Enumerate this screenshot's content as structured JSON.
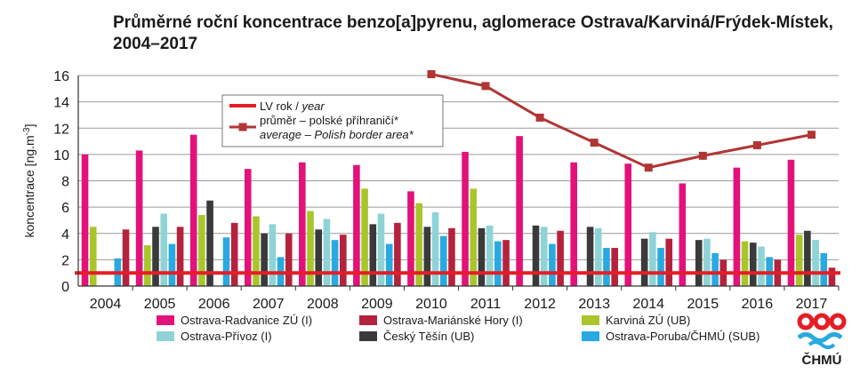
{
  "chart_data": {
    "type": "bar",
    "title": "Průměrné roční koncentrace benzo[a]pyrenu, aglomerace Ostrava/Karviná/Frýdek-Místek, 2004–2017",
    "ylabel": "koncentrace [ng.m-3]",
    "ylim": [
      0,
      16
    ],
    "yticks": [
      "0",
      "2",
      "4",
      "6",
      "8",
      "10",
      "12",
      "14",
      "16"
    ],
    "grid": true,
    "categories": [
      "2004",
      "2005",
      "2006",
      "2007",
      "2008",
      "2009",
      "2010",
      "2011",
      "2012",
      "2013",
      "2014",
      "2015",
      "2016",
      "2017"
    ],
    "series": [
      {
        "name": "Ostrava-Radvanice ZÚ (I)",
        "color": "#e2127a",
        "values": [
          10.0,
          10.3,
          11.5,
          8.9,
          9.4,
          9.2,
          7.2,
          10.2,
          11.4,
          9.4,
          9.3,
          7.8,
          9.0,
          9.6
        ]
      },
      {
        "name": "Karviná ZÚ (UB)",
        "color": "#a8c62b",
        "values": [
          4.5,
          3.1,
          5.4,
          5.3,
          5.7,
          7.4,
          6.3,
          7.4,
          null,
          null,
          null,
          null,
          3.4,
          3.9
        ]
      },
      {
        "name": "Český Těšín (UB)",
        "color": "#3a3a3a",
        "values": [
          null,
          4.5,
          6.5,
          4.0,
          4.3,
          4.7,
          4.5,
          4.4,
          4.6,
          4.5,
          3.6,
          3.5,
          3.3,
          4.2
        ]
      },
      {
        "name": "Ostrava-Přívoz (I)",
        "color": "#8fd3d6",
        "values": [
          null,
          5.5,
          null,
          4.7,
          5.1,
          5.5,
          5.6,
          4.6,
          4.5,
          4.4,
          4.1,
          3.6,
          3.0,
          3.5
        ]
      },
      {
        "name": "Ostrava-Poruba/ČHMÚ (SUB)",
        "color": "#29a9e1",
        "values": [
          2.1,
          3.2,
          3.7,
          2.2,
          3.5,
          3.2,
          3.8,
          3.4,
          3.2,
          2.9,
          2.9,
          2.5,
          2.2,
          2.5
        ]
      },
      {
        "name": "Ostrava-Mariánské Hory (I)",
        "color": "#b5223e",
        "values": [
          4.3,
          4.5,
          4.8,
          4.0,
          3.9,
          4.8,
          4.4,
          3.5,
          4.2,
          2.9,
          3.6,
          2.0,
          2.0,
          1.4
        ]
      }
    ],
    "lines": [
      {
        "name_cz": "LV rok",
        "name_en": "year",
        "color": "#e41e26",
        "type": "constant",
        "value": 1
      },
      {
        "name_cz": "průměr – polské příhraničí*",
        "name_en": "average  – Polish border area*",
        "color": "#b03636",
        "marker": "square",
        "x": [
          "2010",
          "2011",
          "2012",
          "2013",
          "2014",
          "2015",
          "2016",
          "2017"
        ],
        "values": [
          16.1,
          15.2,
          12.8,
          10.9,
          9.0,
          9.9,
          10.7,
          11.5
        ]
      }
    ],
    "legend": [
      {
        "label": "Ostrava-Radvanice ZÚ (I)",
        "color": "#e2127a"
      },
      {
        "label": "Ostrava-Mariánské Hory (I)",
        "color": "#b5223e"
      },
      {
        "label": "Karviná ZÚ (UB)",
        "color": "#a8c62b"
      },
      {
        "label": "Ostrava-Přívoz (I)",
        "color": "#8fd3d6"
      },
      {
        "label": "Český Těšín (UB)",
        "color": "#3a3a3a"
      },
      {
        "label": "Ostrava-Poruba/ČHMÚ (SUB)",
        "color": "#29a9e1"
      }
    ],
    "logo_text": "ČHMÚ"
  }
}
